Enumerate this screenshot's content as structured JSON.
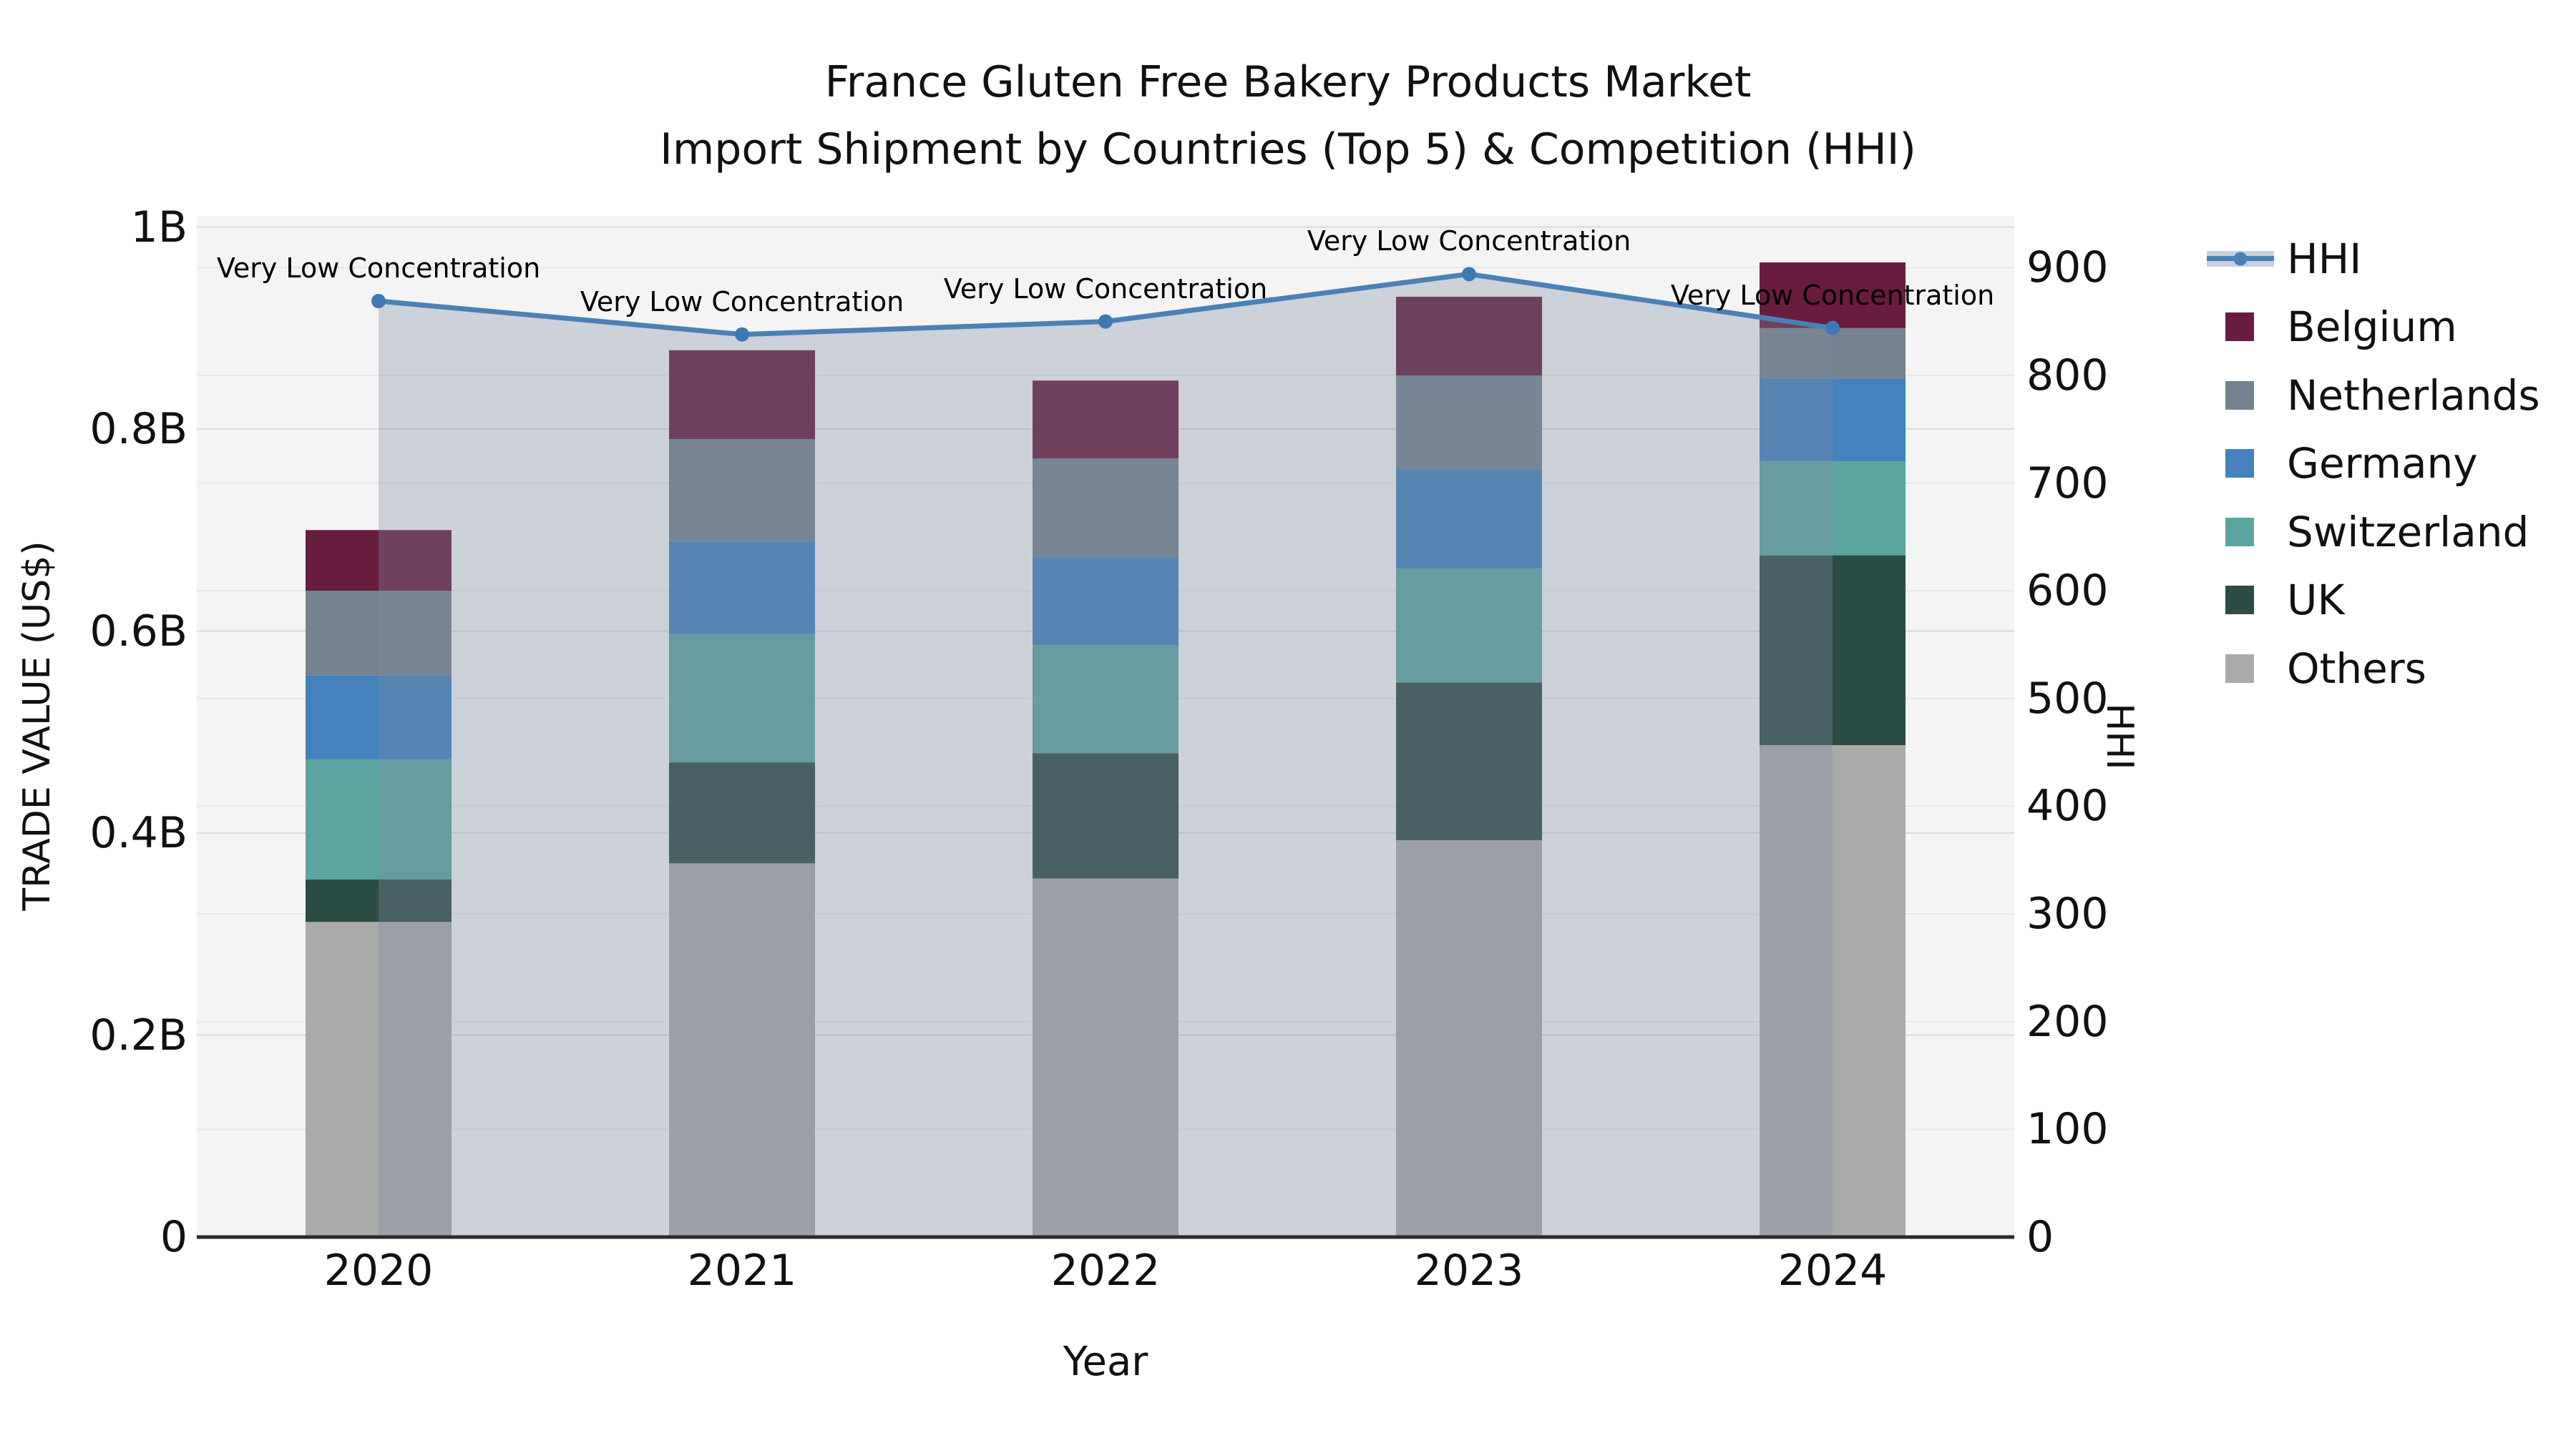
{
  "title": {
    "line1": "France Gluten Free Bakery Products Market",
    "line2": "Import Shipment by Countries (Top 5) & Competition (HHI)"
  },
  "axes": {
    "x_label": "Year",
    "y_left_label": "TRADE VALUE (US$)",
    "y_right_label": "HHI",
    "y_left_ticks": [
      {
        "label": "1B",
        "value": 1.0
      },
      {
        "label": "0.8B",
        "value": 0.8
      },
      {
        "label": "0.6B",
        "value": 0.6
      },
      {
        "label": "0.4B",
        "value": 0.4
      },
      {
        "label": "0.2B",
        "value": 0.2
      },
      {
        "label": "0",
        "value": 0.0
      }
    ],
    "y_right_ticks": [
      {
        "label": "900",
        "value": 900
      },
      {
        "label": "800",
        "value": 800
      },
      {
        "label": "700",
        "value": 700
      },
      {
        "label": "600",
        "value": 600
      },
      {
        "label": "500",
        "value": 500
      },
      {
        "label": "400",
        "value": 400
      },
      {
        "label": "300",
        "value": 300
      },
      {
        "label": "200",
        "value": 200
      },
      {
        "label": "100",
        "value": 100
      },
      {
        "label": "0",
        "value": 0
      }
    ]
  },
  "chart_data": {
    "type": "combo: stacked bars (trade value, left axis) + line with area (HHI, right axis)",
    "categories": [
      "2020",
      "2021",
      "2022",
      "2023",
      "2024"
    ],
    "xlabel": "Year",
    "ylabel_left": "TRADE VALUE (US$)",
    "ylabel_right": "HHI",
    "ylim_left_billions": [
      0,
      1.011
    ],
    "ylim_right_hhi": [
      0,
      948
    ],
    "grid": true,
    "series": [
      {
        "name": "Others",
        "color": "#A9ABA9",
        "values": [
          0.312,
          0.37,
          0.355,
          0.393,
          0.487
        ]
      },
      {
        "name": "UK",
        "color": "#2C4D46",
        "values": [
          0.042,
          0.1,
          0.124,
          0.156,
          0.188
        ]
      },
      {
        "name": "Switzerland",
        "color": "#5CA4A0",
        "values": [
          0.119,
          0.127,
          0.107,
          0.113,
          0.093
        ]
      },
      {
        "name": "Germany",
        "color": "#4382BC",
        "values": [
          0.083,
          0.092,
          0.087,
          0.098,
          0.082
        ]
      },
      {
        "name": "Netherlands",
        "color": "#75828F",
        "values": [
          0.084,
          0.101,
          0.098,
          0.093,
          0.05
        ]
      },
      {
        "name": "Belgium",
        "color": "#681C3E",
        "values": [
          0.06,
          0.088,
          0.077,
          0.078,
          0.065
        ]
      }
    ],
    "bar_totals_billions": [
      0.7,
      0.878,
      0.848,
      0.931,
      0.965
    ],
    "line": {
      "name": "HHI",
      "values": [
        869,
        838,
        850,
        894,
        844
      ],
      "color": "#4A80B5",
      "marker_color": "#3E78B0",
      "area_fill": "rgba(126,140,160,0.33)"
    },
    "annotation_label": "Very Low Concentration",
    "legend_position": "right"
  },
  "legend": {
    "items": [
      {
        "label": "HHI",
        "kind": "line",
        "color": "#4A80B5",
        "band_color": "#C7CFDA"
      },
      {
        "label": "Belgium",
        "kind": "box",
        "color": "#681C3E"
      },
      {
        "label": "Netherlands",
        "kind": "box",
        "color": "#75828F"
      },
      {
        "label": "Germany",
        "kind": "box",
        "color": "#4382BC"
      },
      {
        "label": "Switzerland",
        "kind": "box",
        "color": "#5CA4A0"
      },
      {
        "label": "UK",
        "kind": "box",
        "color": "#2C4D46"
      },
      {
        "label": "Others",
        "kind": "box",
        "color": "#A9ABA9"
      }
    ]
  },
  "style_colors": {
    "plot_background": "#F4F4F4",
    "grid_major": "#DADADA",
    "grid_minor": "#E7E7E7",
    "axis_line": "#2B2B2B",
    "text": "#111111"
  }
}
